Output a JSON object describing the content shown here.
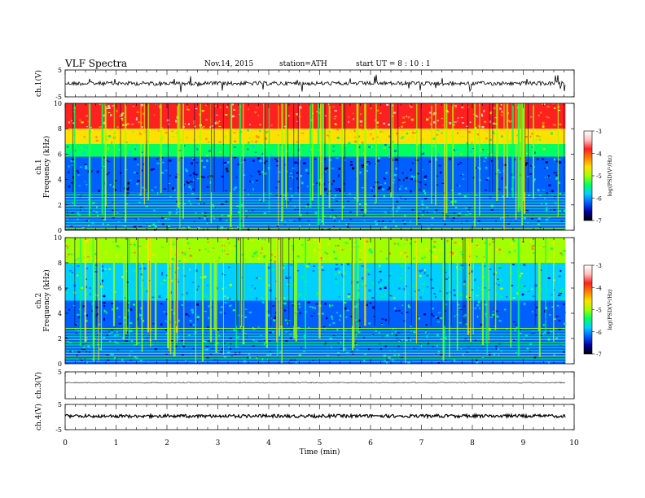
{
  "header": {
    "title": "VLF  Spectra",
    "date": "Nov.14, 2015",
    "station": "station=ATH",
    "start": "start  UT =   8  : 10 : 1"
  },
  "colorbar": {
    "label": "log(PSD(V²/Hz)",
    "ticks": [
      "-3",
      "-4",
      "-5",
      "-6",
      "-7"
    ],
    "colors": [
      "#ffffff",
      "#ffc0c0",
      "#ff2020",
      "#ff8000",
      "#ffe000",
      "#a0ff00",
      "#00ff60",
      "#00d0ff",
      "#0060ff",
      "#0000a0",
      "#000000"
    ]
  },
  "chart_data": [
    {
      "type": "line",
      "panel": "ch1-voltage",
      "ylabel": "ch.1(V)",
      "ylim": [
        -5,
        5
      ],
      "y_ticks": [
        "5",
        "-5"
      ],
      "x_range_min": [
        0,
        9.83
      ],
      "baseline": 0,
      "color": "#000000"
    },
    {
      "type": "heatmap",
      "panel": "ch1-spectrogram",
      "ylabel_ch": "ch.1",
      "ylabel": "Frequency  (kHz)",
      "ylim": [
        0,
        10
      ],
      "y_ticks": [
        "0",
        "2",
        "4",
        "6",
        "8",
        "10"
      ],
      "x_range_min": [
        0,
        9.83
      ],
      "zlim": [
        -7,
        -3
      ],
      "bands": [
        {
          "f_range": [
            8,
            10
          ],
          "level": -3.6
        },
        {
          "f_range": [
            6.8,
            8
          ],
          "level": -4.5
        },
        {
          "f_range": [
            5.8,
            6.8
          ],
          "level": -5.4
        },
        {
          "f_range": [
            3,
            5.8
          ],
          "level": -6.2
        },
        {
          "f_range": [
            0,
            3
          ],
          "level": -6.0
        }
      ]
    },
    {
      "type": "heatmap",
      "panel": "ch2-spectrogram",
      "ylabel_ch": "ch.2",
      "ylabel": "Frequency  (kHz)",
      "ylim": [
        0,
        10
      ],
      "y_ticks": [
        "0",
        "2",
        "4",
        "6",
        "8",
        "10"
      ],
      "x_range_min": [
        0,
        9.83
      ],
      "zlim": [
        -7,
        -3
      ],
      "bands": [
        {
          "f_range": [
            8,
            10
          ],
          "level": -4.6
        },
        {
          "f_range": [
            5,
            8
          ],
          "level": -5.6
        },
        {
          "f_range": [
            3,
            5
          ],
          "level": -5.9
        },
        {
          "f_range": [
            0,
            3
          ],
          "level": -6.0
        }
      ]
    },
    {
      "type": "line",
      "panel": "ch3-voltage",
      "ylabel": "ch.3(V)",
      "ylim": [
        -5,
        5
      ],
      "y_ticks": [
        "5"
      ],
      "x_range_min": [
        0,
        9.83
      ],
      "baseline": 1,
      "color": "#444444"
    },
    {
      "type": "line",
      "panel": "ch4-voltage",
      "ylabel": "ch.4(V)",
      "ylim": [
        -5,
        5
      ],
      "y_ticks": [
        "5",
        "-5"
      ],
      "x_range_min": [
        0,
        9.83
      ],
      "baseline": 0.4,
      "color": "#000000"
    }
  ],
  "x_axis": {
    "label": "Time  (min)",
    "range": [
      0,
      10
    ],
    "ticks": [
      "0",
      "1",
      "2",
      "3",
      "4",
      "5",
      "6",
      "7",
      "8",
      "9",
      "10"
    ]
  }
}
